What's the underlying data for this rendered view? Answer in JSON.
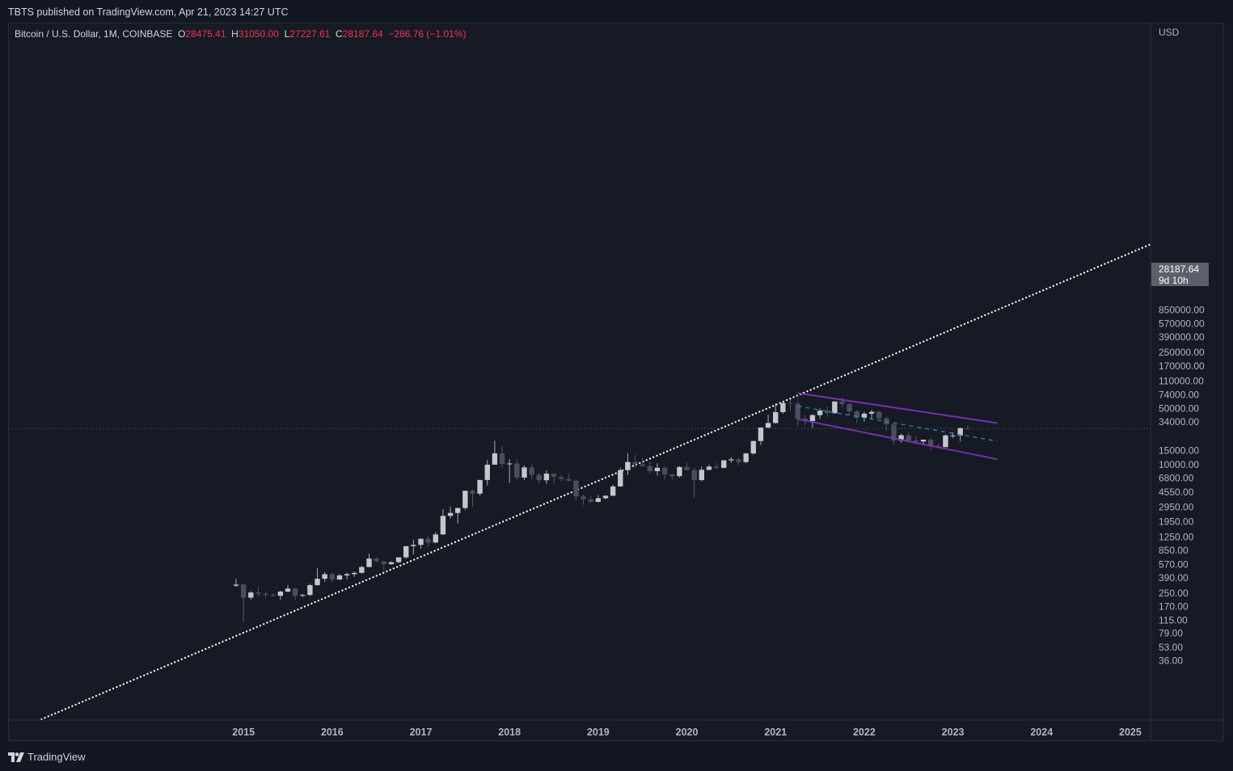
{
  "header": {
    "published": "TBTS published on TradingView.com, Apr 21, 2023 14:27 UTC"
  },
  "footer": {
    "logo_text": "TradingView"
  },
  "legend": {
    "symbol": "Bitcoin / U.S. Dollar, 1M, COINBASE",
    "open_label": "O",
    "open": "28475.41",
    "high_label": "H",
    "high": "31050.00",
    "low_label": "L",
    "low": "27227.61",
    "close_label": "C",
    "close": "28187.64",
    "change": "−286.76 (−1.01%)"
  },
  "price_axis": {
    "currency": "USD",
    "last_price": "28187.64",
    "countdown": "9d 10h"
  },
  "colors": {
    "background": "#131722",
    "candle_up": "#c4c6cc",
    "candle_down": "#4b4e5a",
    "trend_line": "#ffffff",
    "channel": "#7b2fa8",
    "midline": "#2a8fc8",
    "negative": "#f23645"
  },
  "chart_data": {
    "type": "candlestick",
    "scale": "log",
    "interval": "1M",
    "x_ticks": [
      "2015",
      "2016",
      "2017",
      "2018",
      "2019",
      "2020",
      "2021",
      "2022",
      "2023",
      "2024",
      "2025"
    ],
    "y_ticks": [
      850000,
      570000,
      390000,
      250000,
      170000,
      110000,
      74000,
      50000,
      34000,
      15000,
      10000,
      6800,
      4550,
      2950,
      1950,
      1250,
      850,
      570,
      390,
      250,
      170,
      115,
      79,
      53,
      36
    ],
    "y_tick_labels": [
      "850000.00",
      "570000.00",
      "390000.00",
      "250000.00",
      "170000.00",
      "110000.00",
      "74000.00",
      "50000.00",
      "34000.00",
      "15000.00",
      "10000.00",
      "6800.00",
      "4550.00",
      "2950.00",
      "1950.00",
      "1250.00",
      "850.00",
      "570.00",
      "390.00",
      "250.00",
      "170.00",
      "115.00",
      "79.00",
      "53.00",
      "36.00"
    ],
    "last_close": 28187.64,
    "first_month": "2014-12",
    "candles": [
      [
        310,
        378,
        300,
        320
      ],
      [
        320,
        330,
        110,
        220
      ],
      [
        220,
        265,
        208,
        255
      ],
      [
        255,
        300,
        228,
        245
      ],
      [
        245,
        258,
        220,
        238
      ],
      [
        238,
        250,
        225,
        232
      ],
      [
        232,
        268,
        205,
        262
      ],
      [
        262,
        315,
        255,
        285
      ],
      [
        285,
        295,
        208,
        232
      ],
      [
        232,
        245,
        222,
        238
      ],
      [
        238,
        330,
        230,
        315
      ],
      [
        315,
        510,
        310,
        378
      ],
      [
        378,
        460,
        345,
        432
      ],
      [
        432,
        450,
        345,
        370
      ],
      [
        370,
        440,
        365,
        416
      ],
      [
        416,
        450,
        373,
        432
      ],
      [
        432,
        465,
        400,
        448
      ],
      [
        448,
        550,
        440,
        530
      ],
      [
        530,
        780,
        525,
        675
      ],
      [
        675,
        700,
        605,
        625
      ],
      [
        625,
        630,
        475,
        575
      ],
      [
        575,
        625,
        565,
        608
      ],
      [
        608,
        650,
        595,
        700
      ],
      [
        700,
        755,
        670,
        965
      ],
      [
        965,
        1160,
        755,
        1000
      ],
      [
        1000,
        1210,
        890,
        1190
      ],
      [
        1190,
        1290,
        945,
        1070
      ],
      [
        1070,
        1450,
        1050,
        1350
      ],
      [
        1350,
        2780,
        1350,
        2300
      ],
      [
        2300,
        2990,
        2120,
        2500
      ],
      [
        2500,
        2920,
        1850,
        2880
      ],
      [
        2880,
        4750,
        2720,
        4730
      ],
      [
        4730,
        4950,
        2970,
        4350
      ],
      [
        4350,
        6450,
        4100,
        6450
      ],
      [
        6450,
        11500,
        5500,
        10000
      ],
      [
        10000,
        19800,
        10000,
        13850
      ],
      [
        13850,
        17200,
        9000,
        10200
      ],
      [
        10200,
        11800,
        5900,
        10350
      ],
      [
        10350,
        11700,
        6500,
        6900
      ],
      [
        6900,
        9800,
        6400,
        9240
      ],
      [
        9240,
        10000,
        6500,
        7480
      ],
      [
        7480,
        7800,
        5750,
        6400
      ],
      [
        6400,
        8500,
        5800,
        7730
      ],
      [
        7730,
        7800,
        5900,
        7030
      ],
      [
        7030,
        7400,
        6100,
        6630
      ],
      [
        6630,
        7700,
        6200,
        6310
      ],
      [
        6310,
        6600,
        3600,
        4020
      ],
      [
        4020,
        4250,
        3150,
        3700
      ],
      [
        3700,
        4100,
        3350,
        3440
      ],
      [
        3440,
        4200,
        3390,
        3820
      ],
      [
        3820,
        4150,
        3680,
        4100
      ],
      [
        4100,
        5650,
        4050,
        5350
      ],
      [
        5350,
        9100,
        5300,
        8550
      ],
      [
        8550,
        13900,
        7450,
        10800
      ],
      [
        10800,
        13150,
        9100,
        10080
      ],
      [
        10080,
        12300,
        9350,
        9600
      ],
      [
        9600,
        10950,
        7800,
        8300
      ],
      [
        8300,
        10400,
        7300,
        9150
      ],
      [
        9150,
        9500,
        6500,
        7550
      ],
      [
        7550,
        7750,
        6500,
        7200
      ],
      [
        7200,
        9600,
        6900,
        9350
      ],
      [
        9350,
        10500,
        8450,
        8530
      ],
      [
        8530,
        9200,
        3850,
        6420
      ],
      [
        6420,
        9500,
        6200,
        8620
      ],
      [
        8620,
        10000,
        8600,
        9450
      ],
      [
        9450,
        10400,
        8900,
        9140
      ],
      [
        9140,
        11400,
        9000,
        11330
      ],
      [
        11330,
        12450,
        10500,
        11650
      ],
      [
        11650,
        12100,
        9900,
        10780
      ],
      [
        10780,
        14100,
        10400,
        13800
      ],
      [
        13800,
        19900,
        13200,
        19700
      ],
      [
        19700,
        29300,
        17600,
        28990
      ],
      [
        28990,
        41900,
        28200,
        33100
      ],
      [
        33100,
        58300,
        32400,
        45200
      ],
      [
        45200,
        61700,
        43000,
        58800
      ],
      [
        58800,
        64900,
        47000,
        57700
      ],
      [
        57700,
        59500,
        30000,
        37300
      ],
      [
        37300,
        41300,
        31100,
        35000
      ],
      [
        35000,
        42600,
        28800,
        41500
      ],
      [
        41500,
        50500,
        37300,
        47100
      ],
      [
        47100,
        52900,
        39600,
        43800
      ],
      [
        43800,
        61500,
        43300,
        61300
      ],
      [
        61300,
        69000,
        53000,
        57000
      ],
      [
        57000,
        59200,
        42000,
        46200
      ],
      [
        46200,
        48000,
        32900,
        38500
      ],
      [
        38500,
        45800,
        34300,
        43200
      ],
      [
        43200,
        48200,
        37100,
        45500
      ],
      [
        45500,
        47400,
        37600,
        37700
      ],
      [
        37700,
        40000,
        26700,
        31800
      ],
      [
        31800,
        31900,
        17600,
        19940
      ],
      [
        19940,
        24300,
        18800,
        23300
      ],
      [
        23300,
        25200,
        19600,
        20050
      ],
      [
        20050,
        22800,
        18100,
        19430
      ],
      [
        19430,
        20500,
        18200,
        20490
      ],
      [
        20490,
        21500,
        15500,
        17160
      ],
      [
        17160,
        18400,
        16250,
        16540
      ],
      [
        16540,
        23900,
        16500,
        23130
      ],
      [
        23130,
        25250,
        21350,
        23140
      ],
      [
        23140,
        29200,
        19550,
        28470
      ],
      [
        28475.41,
        31050.0,
        27227.61,
        28187.64
      ]
    ],
    "annotations": [
      {
        "type": "trend_line",
        "style": "dotted",
        "from": {
          "month": "2014-01",
          "price": 27
        },
        "through": {
          "month": "2021-04",
          "price": 73000
        }
      },
      {
        "type": "descending_channel",
        "upper": {
          "from": [
            "2021-04",
            78000
          ],
          "to": [
            "2023-07",
            33000
          ]
        },
        "lower": {
          "from": [
            "2021-04",
            37000
          ],
          "to": [
            "2023-07",
            11700
          ]
        },
        "midline_style": "dashed"
      }
    ]
  }
}
